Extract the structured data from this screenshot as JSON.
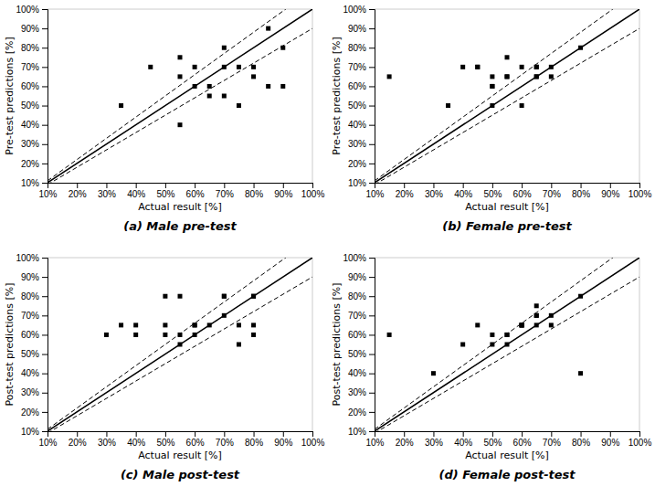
{
  "chart_data": [
    {
      "type": "scatter",
      "title": "(a) Male pre-test",
      "xlabel": "Actual result [%]",
      "ylabel": "Pre-test predictions [%]",
      "x": [
        35,
        45,
        55,
        55,
        55,
        60,
        60,
        65,
        65,
        70,
        70,
        70,
        75,
        75,
        80,
        80,
        85,
        85,
        90,
        90
      ],
      "values": [
        50,
        70,
        40,
        65,
        75,
        60,
        70,
        55,
        60,
        55,
        70,
        80,
        50,
        70,
        65,
        70,
        60,
        90,
        60,
        80
      ],
      "color": "#000000",
      "marker": "square",
      "series": [
        {
          "type": "line",
          "line_style": "solid",
          "color": "#000000",
          "slope": 1.0
        },
        {
          "type": "line",
          "line_style": "dashed",
          "color": "#000000",
          "slope": 1.1
        },
        {
          "type": "line",
          "line_style": "dashed",
          "color": "#000000",
          "slope": 0.9
        }
      ],
      "xlim": [
        10,
        100
      ],
      "ylim": [
        10,
        100
      ],
      "xticks": [
        {
          "value": 10,
          "label": "10%"
        },
        {
          "value": 20,
          "label": "20%"
        },
        {
          "value": 30,
          "label": "30%"
        },
        {
          "value": 40,
          "label": "40%"
        },
        {
          "value": 50,
          "label": "50%"
        },
        {
          "value": 60,
          "label": "60%"
        },
        {
          "value": 70,
          "label": "70%"
        },
        {
          "value": 80,
          "label": "80%"
        },
        {
          "value": 90,
          "label": "90%"
        },
        {
          "value": 100,
          "label": "100%"
        }
      ],
      "yticks": [
        {
          "value": 10,
          "label": "10%"
        },
        {
          "value": 20,
          "label": "20%"
        },
        {
          "value": 30,
          "label": "30%"
        },
        {
          "value": 40,
          "label": "40%"
        },
        {
          "value": 50,
          "label": "50%"
        },
        {
          "value": 60,
          "label": "60%"
        },
        {
          "value": 70,
          "label": "70%"
        },
        {
          "value": 80,
          "label": "80%"
        },
        {
          "value": 90,
          "label": "90%"
        },
        {
          "value": 100,
          "label": "100%"
        }
      ]
    },
    {
      "type": "scatter",
      "title": "(b) Female pre-test",
      "xlabel": "Actual result [%]",
      "ylabel": "Pre-test predictions [%]",
      "x": [
        15,
        35,
        40,
        45,
        45,
        50,
        50,
        50,
        50,
        55,
        55,
        55,
        60,
        60,
        65,
        65,
        65,
        65,
        70,
        70,
        80
      ],
      "values": [
        65,
        50,
        70,
        70,
        70,
        50,
        60,
        60,
        65,
        65,
        65,
        75,
        50,
        70,
        65,
        65,
        70,
        70,
        70,
        65,
        80
      ],
      "color": "#000000",
      "marker": "square",
      "series": [
        {
          "type": "line",
          "line_style": "solid",
          "color": "#000000",
          "slope": 1.0
        },
        {
          "type": "line",
          "line_style": "dashed",
          "color": "#000000",
          "slope": 1.1
        },
        {
          "type": "line",
          "line_style": "dashed",
          "color": "#000000",
          "slope": 0.9
        }
      ],
      "xlim": [
        10,
        100
      ],
      "ylim": [
        10,
        100
      ],
      "xticks": [
        {
          "value": 10,
          "label": "10%"
        },
        {
          "value": 20,
          "label": "20%"
        },
        {
          "value": 30,
          "label": "30%"
        },
        {
          "value": 40,
          "label": "40%"
        },
        {
          "value": 50,
          "label": "50%"
        },
        {
          "value": 60,
          "label": "60%"
        },
        {
          "value": 70,
          "label": "70%"
        },
        {
          "value": 80,
          "label": "80%"
        },
        {
          "value": 90,
          "label": "90%"
        },
        {
          "value": 100,
          "label": "100%"
        }
      ],
      "yticks": [
        {
          "value": 10,
          "label": "10%"
        },
        {
          "value": 20,
          "label": "20%"
        },
        {
          "value": 30,
          "label": "30%"
        },
        {
          "value": 40,
          "label": "40%"
        },
        {
          "value": 50,
          "label": "50%"
        },
        {
          "value": 60,
          "label": "60%"
        },
        {
          "value": 70,
          "label": "70%"
        },
        {
          "value": 80,
          "label": "80%"
        },
        {
          "value": 90,
          "label": "90%"
        },
        {
          "value": 100,
          "label": "100%"
        }
      ]
    },
    {
      "type": "scatter",
      "title": "(c) Male post-test",
      "xlabel": "Actual result [%]",
      "ylabel": "Post-test predictions [%]",
      "x": [
        30,
        35,
        40,
        40,
        50,
        50,
        50,
        55,
        55,
        55,
        60,
        60,
        60,
        65,
        70,
        70,
        70,
        75,
        75,
        80,
        80,
        80,
        80
      ],
      "values": [
        60,
        65,
        60,
        65,
        60,
        65,
        80,
        55,
        60,
        80,
        60,
        65,
        65,
        65,
        70,
        80,
        80,
        55,
        65,
        80,
        80,
        60,
        65
      ],
      "color": "#000000",
      "marker": "square",
      "series": [
        {
          "type": "line",
          "line_style": "solid",
          "color": "#000000",
          "slope": 1.0
        },
        {
          "type": "line",
          "line_style": "dashed",
          "color": "#000000",
          "slope": 1.1
        },
        {
          "type": "line",
          "line_style": "dashed",
          "color": "#000000",
          "slope": 0.9
        }
      ],
      "xlim": [
        10,
        100
      ],
      "ylim": [
        10,
        100
      ],
      "xticks": [
        {
          "value": 10,
          "label": "10%"
        },
        {
          "value": 20,
          "label": "20%"
        },
        {
          "value": 30,
          "label": "30%"
        },
        {
          "value": 40,
          "label": "40%"
        },
        {
          "value": 50,
          "label": "50%"
        },
        {
          "value": 60,
          "label": "60%"
        },
        {
          "value": 70,
          "label": "70%"
        },
        {
          "value": 80,
          "label": "80%"
        },
        {
          "value": 90,
          "label": "90%"
        },
        {
          "value": 100,
          "label": "100%"
        }
      ],
      "yticks": [
        {
          "value": 10,
          "label": "10%"
        },
        {
          "value": 20,
          "label": "20%"
        },
        {
          "value": 30,
          "label": "30%"
        },
        {
          "value": 40,
          "label": "40%"
        },
        {
          "value": 50,
          "label": "50%"
        },
        {
          "value": 60,
          "label": "60%"
        },
        {
          "value": 70,
          "label": "70%"
        },
        {
          "value": 80,
          "label": "80%"
        },
        {
          "value": 90,
          "label": "90%"
        },
        {
          "value": 100,
          "label": "100%"
        }
      ]
    },
    {
      "type": "scatter",
      "title": "(d) Female post-test",
      "xlabel": "Actual result [%]",
      "ylabel": "Post-test predictions [%]",
      "x": [
        15,
        30,
        40,
        45,
        50,
        50,
        55,
        55,
        55,
        60,
        60,
        60,
        60,
        65,
        65,
        65,
        65,
        70,
        70,
        80,
        80
      ],
      "values": [
        60,
        40,
        55,
        65,
        55,
        60,
        55,
        60,
        60,
        65,
        65,
        65,
        65,
        65,
        70,
        70,
        75,
        65,
        70,
        80,
        40
      ],
      "color": "#000000",
      "marker": "square",
      "series": [
        {
          "type": "line",
          "line_style": "solid",
          "color": "#000000",
          "slope": 1.0
        },
        {
          "type": "line",
          "line_style": "dashed",
          "color": "#000000",
          "slope": 1.1
        },
        {
          "type": "line",
          "line_style": "dashed",
          "color": "#000000",
          "slope": 0.9
        }
      ],
      "xlim": [
        10,
        100
      ],
      "ylim": [
        10,
        100
      ],
      "xticks": [
        {
          "value": 10,
          "label": "10%"
        },
        {
          "value": 20,
          "label": "20%"
        },
        {
          "value": 30,
          "label": "30%"
        },
        {
          "value": 40,
          "label": "40%"
        },
        {
          "value": 50,
          "label": "50%"
        },
        {
          "value": 60,
          "label": "60%"
        },
        {
          "value": 70,
          "label": "70%"
        },
        {
          "value": 80,
          "label": "80%"
        },
        {
          "value": 90,
          "label": "90%"
        },
        {
          "value": 100,
          "label": "100%"
        }
      ],
      "yticks": [
        {
          "value": 10,
          "label": "10%"
        },
        {
          "value": 20,
          "label": "20%"
        },
        {
          "value": 30,
          "label": "30%"
        },
        {
          "value": 40,
          "label": "40%"
        },
        {
          "value": 50,
          "label": "50%"
        },
        {
          "value": 60,
          "label": "60%"
        },
        {
          "value": 70,
          "label": "70%"
        },
        {
          "value": 80,
          "label": "80%"
        },
        {
          "value": 90,
          "label": "90%"
        },
        {
          "value": 100,
          "label": "100%"
        }
      ]
    }
  ]
}
